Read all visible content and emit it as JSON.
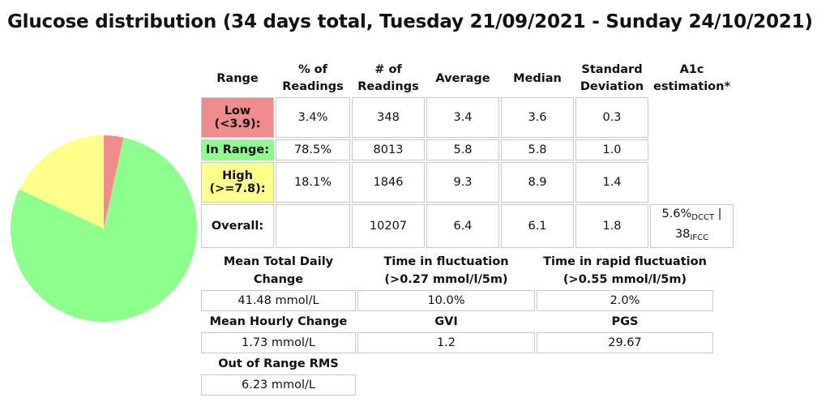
{
  "title": "Glucose distribution (34 days total, Tuesday 21/09/2021 - Sunday 24/10/2021)",
  "colors": {
    "low": "#f08c8c",
    "in_range": "#8cff8c",
    "high": "#ffff8c",
    "border": "#c8c8c8"
  },
  "distribution": {
    "headers": {
      "range": "Range",
      "pct_line1": "% of",
      "pct_line2": "Readings",
      "num_line1": "# of",
      "num_line2": "Readings",
      "average": "Average",
      "median": "Median",
      "sd_line1": "Standard",
      "sd_line2": "Deviation",
      "a1c_line1": "A1c",
      "a1c_line2": "estimation*"
    },
    "rows": {
      "low": {
        "label_line1": "Low",
        "label_line2": "(<3.9):",
        "pct": "3.4%",
        "count": "348",
        "average": "3.4",
        "median": "3.6",
        "sd": "0.3"
      },
      "in_range": {
        "label": "In Range:",
        "pct": "78.5%",
        "count": "8013",
        "average": "5.8",
        "median": "5.8",
        "sd": "1.0"
      },
      "high": {
        "label_line1": "High",
        "label_line2": "(>=7.8):",
        "pct": "18.1%",
        "count": "1846",
        "average": "9.3",
        "median": "8.9",
        "sd": "1.4"
      },
      "overall": {
        "label": "Overall:",
        "pct": "",
        "count": "10207",
        "average": "6.4",
        "median": "6.1",
        "sd": "1.8",
        "a1c_dcct_value": "5.6%",
        "a1c_dcct_unit": "DCCT",
        "a1c_separator": " |",
        "a1c_ifcc_value": "38",
        "a1c_ifcc_unit": "IFCC"
      }
    }
  },
  "metrics": {
    "mean_total_daily_change": {
      "label_line1": "Mean Total Daily",
      "label_line2": "Change",
      "value": "41.48 mmol/L"
    },
    "time_in_fluctuation": {
      "label_line1": "Time in fluctuation",
      "label_line2": "(>0.27 mmol/l/5m)",
      "value": "10.0%"
    },
    "time_in_rapid_fluctuation": {
      "label_line1": "Time in rapid fluctuation",
      "label_line2": "(>0.55 mmol/l/5m)",
      "value": "2.0%"
    },
    "mean_hourly_change": {
      "label": "Mean Hourly Change",
      "value": "1.73 mmol/L"
    },
    "gvi": {
      "label": "GVI",
      "value": "1.2"
    },
    "pgs": {
      "label": "PGS",
      "value": "29.67"
    },
    "out_of_range_rms": {
      "label": "Out of Range RMS",
      "value": "6.23 mmol/L"
    }
  },
  "chart_data": {
    "type": "pie",
    "categories": [
      "Low",
      "In Range",
      "High"
    ],
    "values": [
      3.4,
      78.5,
      18.1
    ],
    "colors": [
      "#f08c8c",
      "#8cff8c",
      "#ffff8c"
    ],
    "start_angle_deg": 0,
    "direction": "clockwise"
  }
}
